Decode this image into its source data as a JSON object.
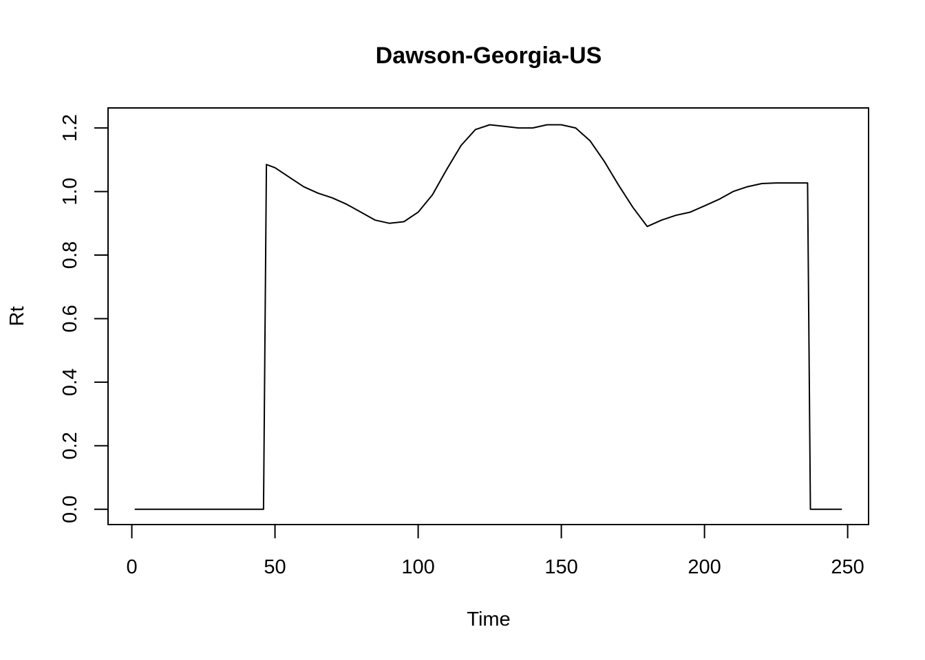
{
  "chart_data": {
    "type": "line",
    "title": "Dawson-Georgia-US",
    "xlabel": "Time",
    "ylabel": "Rt",
    "xlim": [
      -8.3,
      257.3
    ],
    "ylim": [
      -0.048,
      1.263
    ],
    "xticks": [
      "0",
      "50",
      "100",
      "150",
      "200",
      "250"
    ],
    "yticks": [
      "0.0",
      "0.2",
      "0.4",
      "0.6",
      "0.8",
      "1.0",
      "1.2"
    ],
    "grid": false,
    "legend": "none",
    "series": [
      {
        "x": [
          1,
          46,
          47,
          50,
          55,
          60,
          65,
          70,
          75,
          80,
          85,
          90,
          95,
          100,
          105,
          110,
          115,
          120,
          125,
          130,
          135,
          140,
          145,
          150,
          155,
          160,
          165,
          170,
          175,
          180,
          185,
          190,
          195,
          200,
          205,
          210,
          215,
          220,
          225,
          230,
          236,
          237,
          248
        ],
        "y": [
          0,
          0,
          1.085,
          1.075,
          1.045,
          1.015,
          0.995,
          0.98,
          0.96,
          0.935,
          0.91,
          0.9,
          0.905,
          0.935,
          0.99,
          1.07,
          1.145,
          1.195,
          1.21,
          1.205,
          1.2,
          1.2,
          1.21,
          1.21,
          1.2,
          1.16,
          1.095,
          1.02,
          0.95,
          0.89,
          0.91,
          0.925,
          0.935,
          0.955,
          0.975,
          1.0,
          1.015,
          1.025,
          1.027,
          1.027,
          1.027,
          0,
          0
        ]
      }
    ]
  }
}
